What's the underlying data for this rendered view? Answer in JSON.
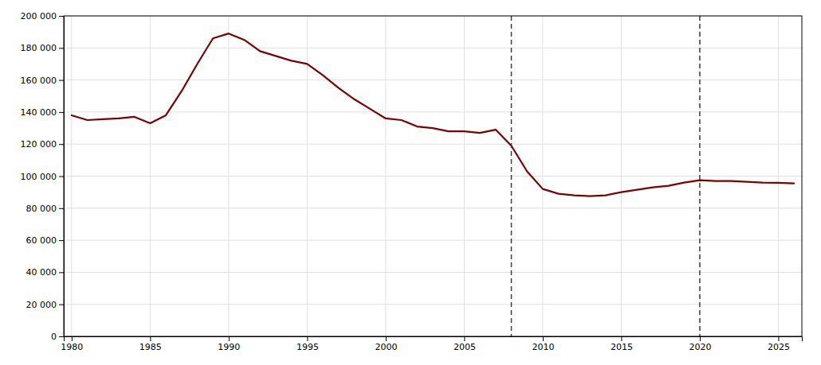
{
  "chart_data": {
    "type": "line",
    "x": [
      1980,
      1981,
      1982,
      1983,
      1984,
      1985,
      1986,
      1987,
      1988,
      1989,
      1990,
      1991,
      1992,
      1993,
      1994,
      1995,
      1996,
      1997,
      1998,
      1999,
      2000,
      2001,
      2002,
      2003,
      2004,
      2005,
      2006,
      2007,
      2008,
      2009,
      2010,
      2011,
      2012,
      2013,
      2014,
      2015,
      2016,
      2017,
      2018,
      2019,
      2020,
      2021,
      2022,
      2023,
      2024,
      2025,
      2026
    ],
    "values": [
      138000,
      135000,
      135500,
      136000,
      137000,
      133000,
      138000,
      153000,
      170000,
      186000,
      189000,
      185000,
      178000,
      175000,
      172000,
      170000,
      163000,
      155000,
      148000,
      142000,
      136000,
      135000,
      131000,
      130000,
      128000,
      128000,
      127000,
      129000,
      119000,
      103000,
      92000,
      89000,
      88000,
      87500,
      88000,
      90000,
      91500,
      93000,
      94000,
      96000,
      97500,
      97000,
      97000,
      96500,
      96000,
      95800,
      95500
    ],
    "color": "#7B0000",
    "vlines": [
      2008,
      2020
    ],
    "xlim": [
      1979.5,
      2026.5
    ],
    "ylim": [
      0,
      200000
    ],
    "xticks": [
      1980,
      1985,
      1990,
      1995,
      2000,
      2005,
      2010,
      2015,
      2020,
      2025
    ],
    "yticks": [
      0,
      {
        "value": 20000,
        "label": "20 000"
      },
      {
        "value": 40000,
        "label": "40 000"
      },
      {
        "value": 60000,
        "label": "60 000"
      },
      {
        "value": 80000,
        "label": "80 000"
      },
      {
        "value": 100000,
        "label": "100 000"
      },
      {
        "value": 120000,
        "label": "120 000"
      },
      {
        "value": 140000,
        "label": "140 000"
      },
      {
        "value": 160000,
        "label": "160 000"
      },
      {
        "value": 180000,
        "label": "180 000"
      },
      {
        "value": 200000,
        "label": "200 000"
      }
    ],
    "grid": true
  }
}
